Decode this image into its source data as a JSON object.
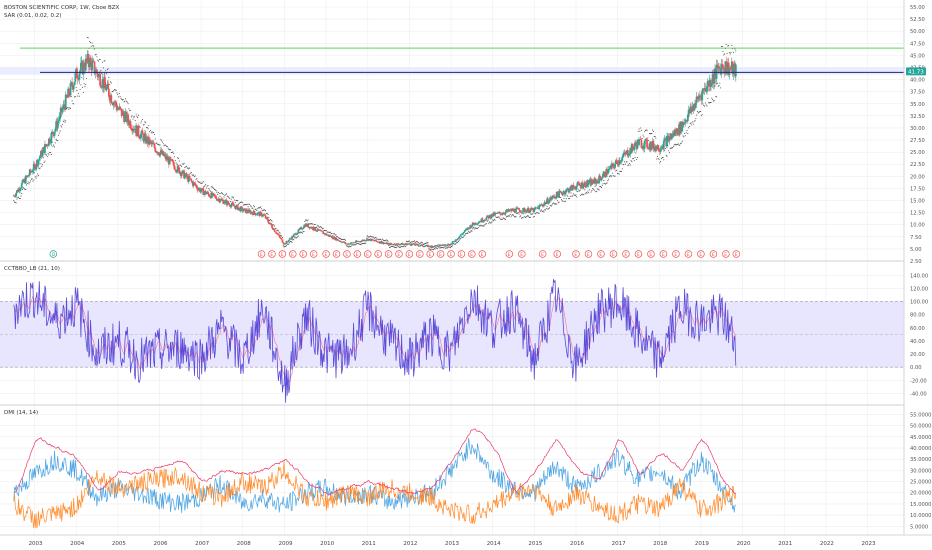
{
  "colors": {
    "up": "#26a69a",
    "down": "#ef5350",
    "sar": "#4e4e4e",
    "resistance_green": "#5ad35a",
    "support_navy": "#1a237e",
    "cci": "#5b4bd8",
    "cci_signal": "#ff6f8a",
    "band": "#e8e6ff",
    "dmi_plus": "#4ba3e3",
    "dmi_minus": "#ff8a2a",
    "adx": "#e83a6b",
    "grid": "#eeeeee",
    "price_tag": "#26a69a",
    "marker_red": "#ef5350",
    "marker_green": "#26a69a"
  },
  "panels": {
    "price": {
      "title": "BOSTON SCIENTIFIC CORP, 1W, Cboe BZX",
      "indicator_label": "SAR (0.01, 0.02, 0.2)",
      "current_price": "41.73",
      "ticks": [
        "55.00",
        "52.50",
        "50.00",
        "47.50",
        "45.00",
        "42.50",
        "40.00",
        "37.50",
        "35.00",
        "32.50",
        "30.00",
        "27.50",
        "25.00",
        "22.50",
        "20.00",
        "17.50",
        "15.00",
        "12.50",
        "10.00",
        "7.50",
        "5.00",
        "2.50"
      ],
      "marker_green_label": "D",
      "marker_red_label": "E"
    },
    "cci": {
      "label": "CCTBBO_LB (21, 10)",
      "ticks": [
        "140.00",
        "120.00",
        "100.00",
        "80.00",
        "60.00",
        "40.00",
        "20.00",
        "0.00",
        "-20.00",
        "-40.00"
      ]
    },
    "dmi": {
      "label": "DMI (14, 14)",
      "ticks": [
        "55.0000",
        "50.0000",
        "45.0000",
        "40.0000",
        "35.0000",
        "30.0000",
        "25.0000",
        "20.0000",
        "15.0000",
        "10.0000",
        "5.0000"
      ]
    }
  },
  "x_axis": {
    "labels": [
      "2003",
      "2004",
      "2005",
      "2006",
      "2007",
      "2008",
      "2009",
      "2010",
      "2011",
      "2012",
      "2013",
      "2014",
      "2015",
      "2016",
      "2017",
      "2018",
      "2019",
      "2020",
      "2021",
      "2022",
      "2023"
    ]
  },
  "chart_data": [
    {
      "type": "line",
      "title": "BOSTON SCIENTIFIC CORP, 1W, Cboe BZX",
      "xlabel": "",
      "ylabel": "",
      "x": [
        2002.5,
        2003.0,
        2003.5,
        2004.0,
        2004.3,
        2004.6,
        2005.0,
        2005.5,
        2006.0,
        2006.5,
        2007.0,
        2007.5,
        2008.0,
        2008.5,
        2009.0,
        2009.5,
        2010.0,
        2010.5,
        2011.0,
        2011.5,
        2012.0,
        2012.5,
        2013.0,
        2013.5,
        2014.0,
        2014.5,
        2015.0,
        2015.5,
        2016.0,
        2016.5,
        2017.0,
        2017.5,
        2018.0,
        2018.5,
        2019.0,
        2019.5,
        2019.85
      ],
      "series": [
        {
          "name": "",
          "values": [
            16,
            22,
            30,
            41,
            44,
            40,
            34,
            29,
            25,
            21,
            17,
            15,
            13,
            12,
            6,
            10,
            8,
            6,
            7,
            6,
            6,
            5.5,
            6,
            10,
            12,
            13,
            13,
            16,
            18,
            19,
            23,
            27,
            26,
            30,
            37,
            43,
            41.7
          ]
        }
      ],
      "lines": [
        {
          "label": "resistance",
          "y": 46.5
        },
        {
          "label": "support",
          "y": 41.5
        }
      ],
      "ylim": [
        2.5,
        55
      ]
    },
    {
      "type": "line",
      "title": "CCTBBO_LB (21, 10)",
      "xlabel": "",
      "ylabel": "",
      "x": [
        2002.5,
        2003.0,
        2003.5,
        2004.0,
        2004.5,
        2005.0,
        2005.5,
        2006.0,
        2006.5,
        2007.0,
        2007.5,
        2008.0,
        2008.5,
        2009.0,
        2009.5,
        2010.0,
        2010.5,
        2011.0,
        2011.5,
        2012.0,
        2012.5,
        2013.0,
        2013.5,
        2014.0,
        2014.5,
        2015.0,
        2015.5,
        2016.0,
        2016.5,
        2017.0,
        2017.5,
        2018.0,
        2018.5,
        2019.0,
        2019.5,
        2019.85
      ],
      "series": [
        {
          "name": "",
          "values": [
            90,
            110,
            70,
            95,
            20,
            40,
            10,
            25,
            30,
            15,
            60,
            10,
            90,
            -30,
            80,
            20,
            15,
            90,
            40,
            10,
            50,
            20,
            110,
            60,
            90,
            10,
            110,
            0,
            80,
            100,
            50,
            10,
            90,
            70,
            80,
            35
          ]
        }
      ],
      "band": [
        0,
        100
      ],
      "ylim": [
        -50,
        145
      ]
    },
    {
      "type": "line",
      "title": "DMI (14, 14)",
      "xlabel": "",
      "ylabel": "",
      "x": [
        2002.5,
        2003.0,
        2003.5,
        2004.0,
        2004.5,
        2005.0,
        2005.5,
        2006.0,
        2006.5,
        2007.0,
        2007.5,
        2008.0,
        2008.5,
        2009.0,
        2009.5,
        2010.0,
        2010.5,
        2011.0,
        2011.5,
        2012.0,
        2012.5,
        2013.0,
        2013.5,
        2014.0,
        2014.5,
        2015.0,
        2015.5,
        2016.0,
        2016.5,
        2017.0,
        2017.5,
        2018.0,
        2018.5,
        2019.0,
        2019.5,
        2019.85
      ],
      "series": [
        {
          "name": "",
          "values": [
            20,
            28,
            35,
            30,
            18,
            22,
            20,
            17,
            15,
            18,
            24,
            15,
            18,
            14,
            20,
            22,
            18,
            20,
            16,
            18,
            20,
            30,
            42,
            28,
            22,
            20,
            32,
            22,
            28,
            36,
            26,
            30,
            20,
            35,
            22,
            14
          ]
        },
        {
          "name": "",
          "values": [
            15,
            8,
            10,
            14,
            28,
            22,
            24,
            26,
            28,
            20,
            18,
            25,
            22,
            30,
            18,
            16,
            20,
            18,
            22,
            20,
            18,
            12,
            10,
            14,
            20,
            22,
            12,
            20,
            14,
            10,
            15,
            12,
            24,
            12,
            16,
            20
          ]
        },
        {
          "name": "",
          "values": [
            20,
            45,
            40,
            35,
            20,
            30,
            28,
            32,
            35,
            25,
            30,
            28,
            30,
            35,
            25,
            20,
            22,
            25,
            22,
            20,
            22,
            35,
            50,
            40,
            20,
            30,
            45,
            30,
            25,
            45,
            28,
            38,
            30,
            45,
            25,
            18
          ]
        }
      ],
      "ylim": [
        2,
        57
      ]
    }
  ]
}
